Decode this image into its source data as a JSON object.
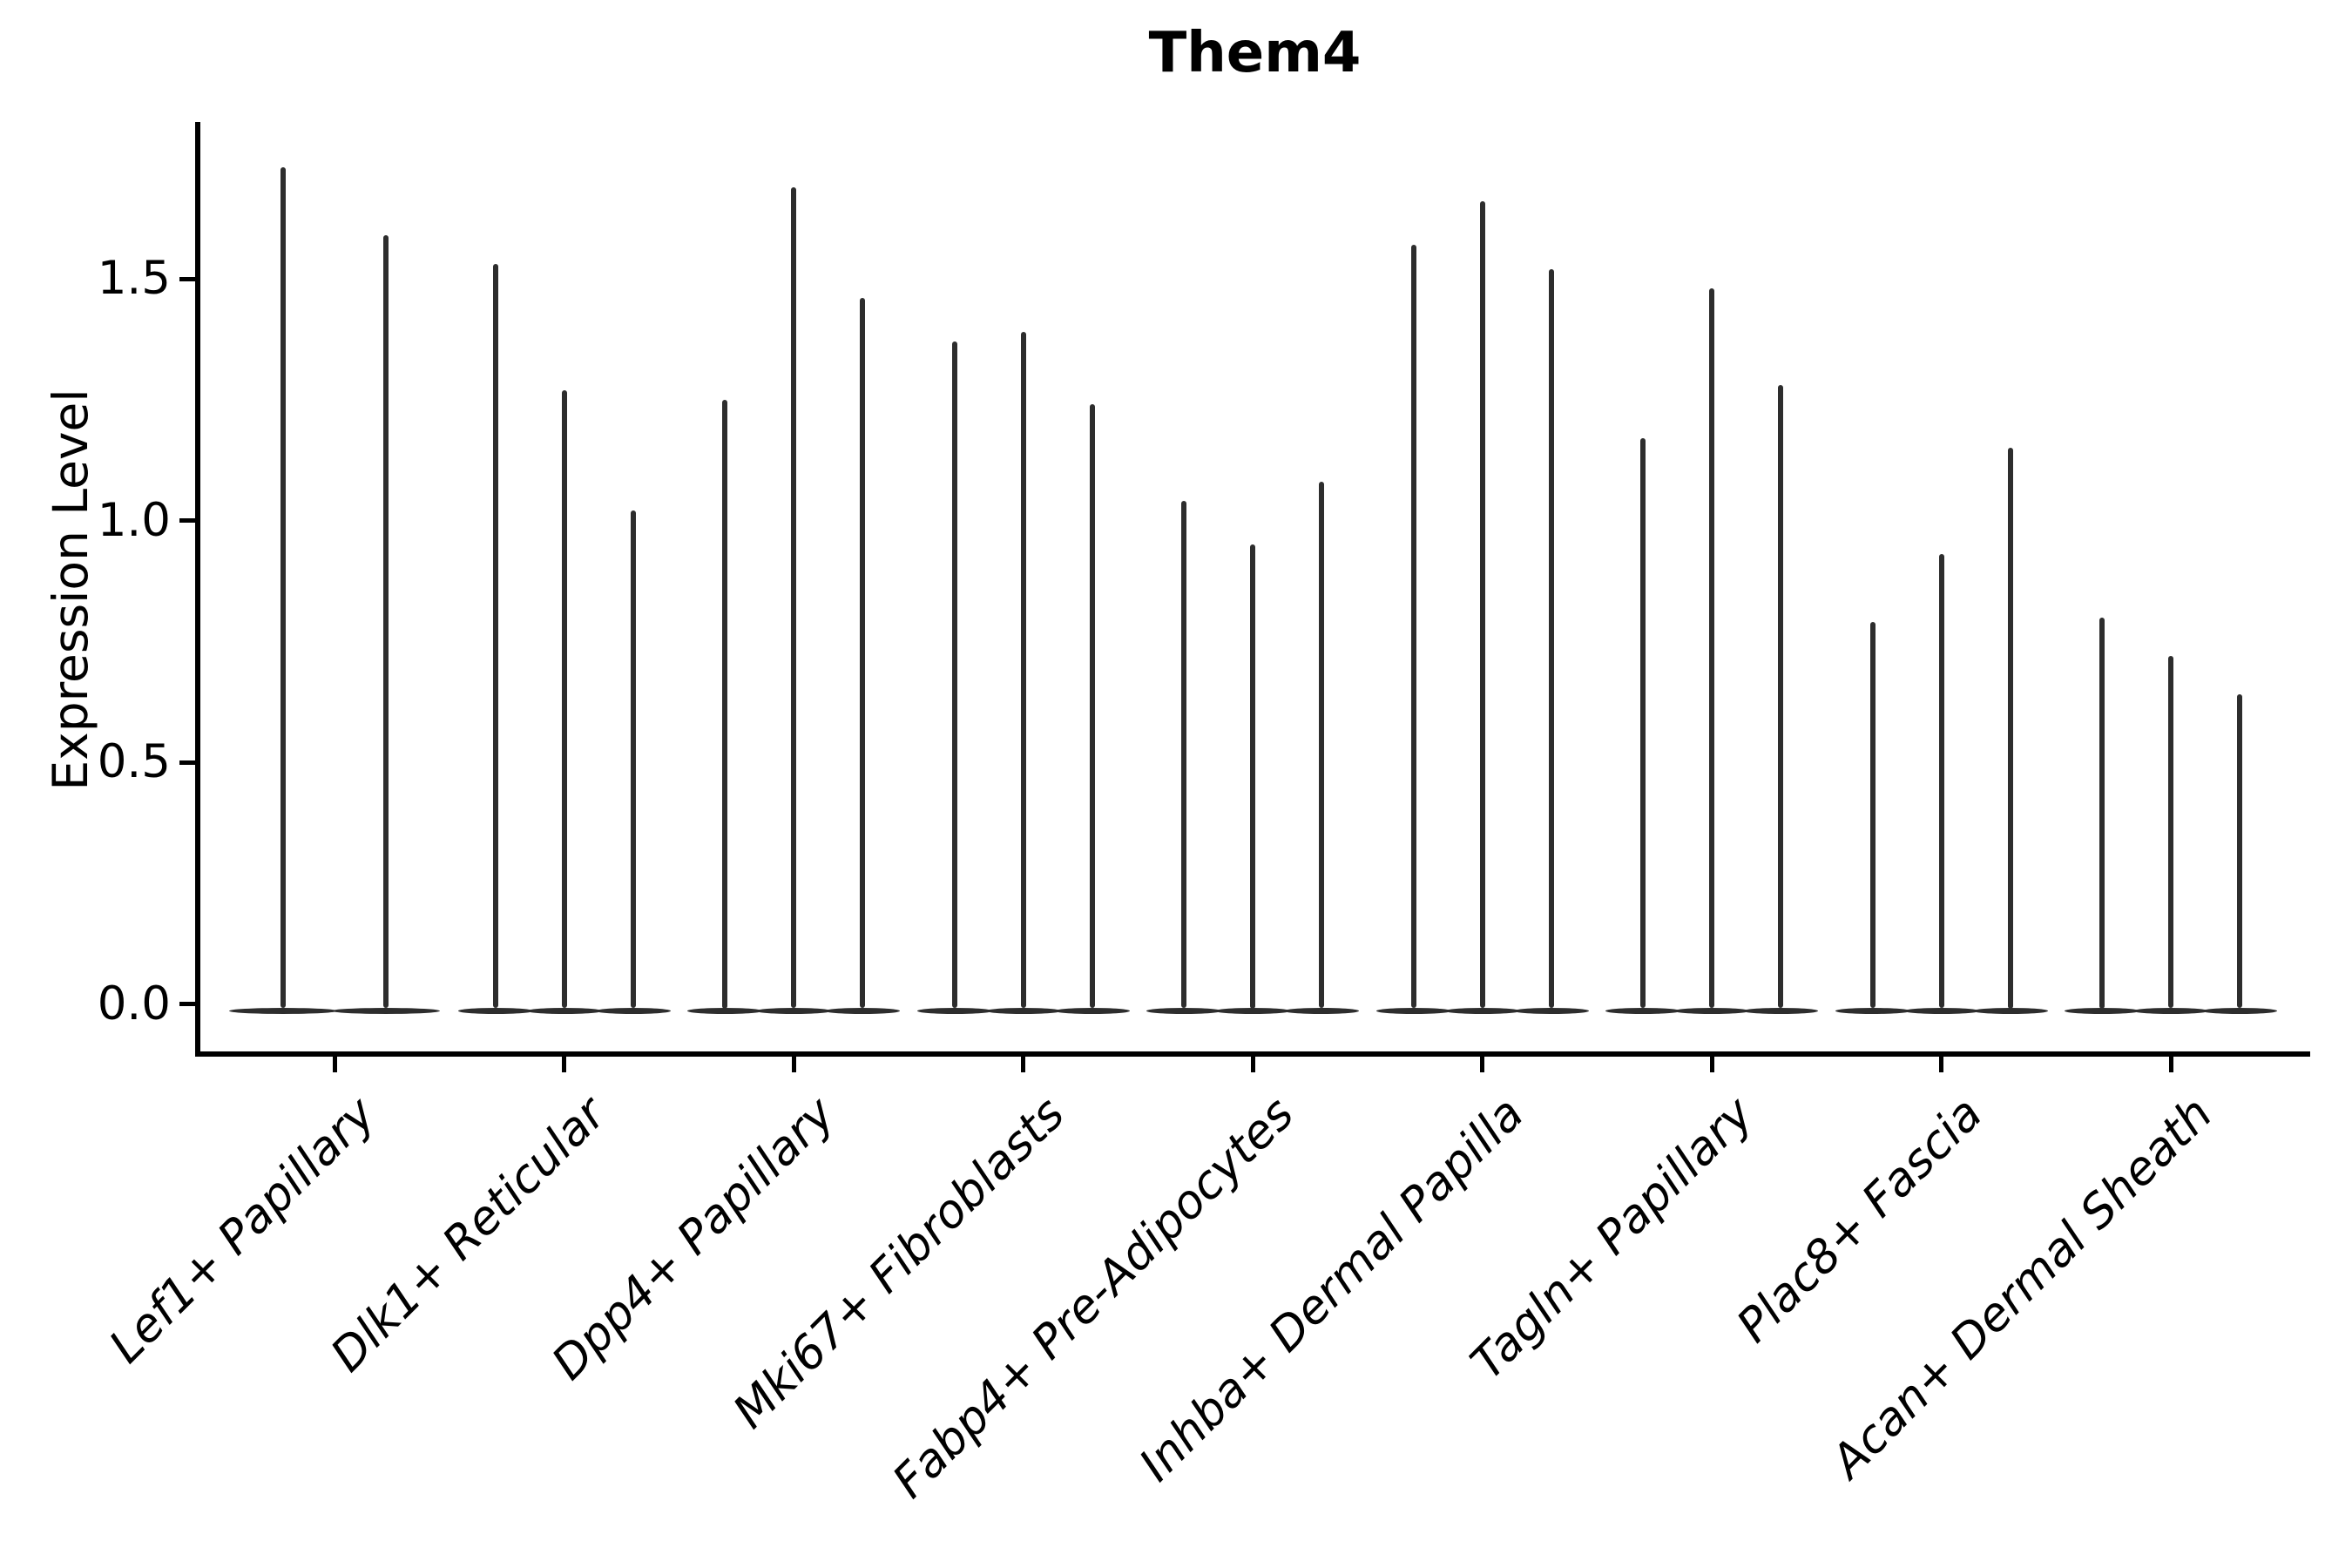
{
  "title": "Them4",
  "ylabel": "Expression Level",
  "ytick_labels": [
    "0.0",
    "0.5",
    "1.0",
    "1.5"
  ],
  "colors": {
    "violin": "#2d2d2d",
    "axis": "#000000",
    "background": "#ffffff",
    "text": "#000000"
  },
  "chart_data": {
    "type": "violin",
    "title": "Them4",
    "xlabel": "",
    "ylabel": "Expression Level",
    "yticks": [
      0.0,
      0.5,
      1.0,
      1.5
    ],
    "ylim": [
      -0.11,
      1.82
    ],
    "grid": false,
    "legend": "none",
    "description": "Needle-like violin plot of Them4 expression; each cell-type group contains thin violins (sub-clusters) rising from a dense flat base at 0 to their maximum expression value.",
    "categories": [
      "Lef1+ Papillary",
      "Dlk1+ Reticular",
      "Dpp4+ Papillary",
      "Mki67+ Fibroblasts",
      "Fabp4+ Pre-Adipocytes",
      "Inhba+ Dermal Papilla",
      "Tagln+ Papillary",
      "Plac8+ Fascia",
      "Acan+ Dermal Sheath"
    ],
    "groups": [
      {
        "label": "Lef1+ Papillary",
        "violin_max": [
          1.73,
          1.59
        ]
      },
      {
        "label": "Dlk1+ Reticular",
        "violin_max": [
          1.53,
          1.27,
          1.02
        ]
      },
      {
        "label": "Dpp4+ Papillary",
        "violin_max": [
          1.25,
          1.69,
          1.46
        ]
      },
      {
        "label": "Mki67+ Fibroblasts",
        "violin_max": [
          1.37,
          1.39,
          1.24
        ]
      },
      {
        "label": "Fabp4+ Pre-Adipocytes",
        "violin_max": [
          1.04,
          0.95,
          1.08
        ]
      },
      {
        "label": "Inhba+ Dermal Papilla",
        "violin_max": [
          1.57,
          1.66,
          1.52
        ]
      },
      {
        "label": "Tagln+ Papillary",
        "violin_max": [
          1.17,
          1.48,
          1.28
        ]
      },
      {
        "label": "Plac8+ Fascia",
        "violin_max": [
          0.79,
          0.93,
          1.15
        ]
      },
      {
        "label": "Acan+ Dermal Sheath",
        "violin_max": [
          0.8,
          0.72,
          0.64
        ]
      }
    ],
    "violin_min": 0.0
  }
}
